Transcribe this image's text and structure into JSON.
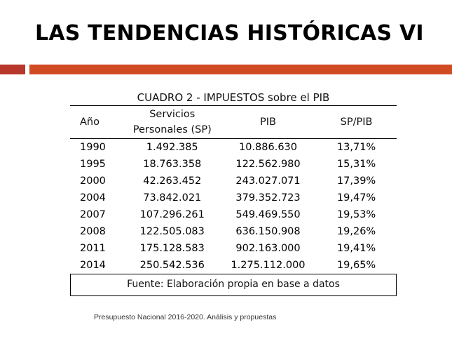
{
  "title": "LAS TENDENCIAS HISTÓRICAS VI",
  "table": {
    "caption": "CUADRO 2 - IMPUESTOS sobre el PIB",
    "headers": {
      "year": "Año",
      "sp_line1": "Servicios",
      "sp_line2": "Personales (SP)",
      "pib": "PIB",
      "ratio": "SP/PIB"
    },
    "rows": [
      {
        "year": "1990",
        "sp": "1.492.385",
        "pib": "10.886.630",
        "ratio": "13,71%"
      },
      {
        "year": "1995",
        "sp": "18.763.358",
        "pib": "122.562.980",
        "ratio": "15,31%"
      },
      {
        "year": "2000",
        "sp": "42.263.452",
        "pib": "243.027.071",
        "ratio": "17,39%"
      },
      {
        "year": "2004",
        "sp": "73.842.021",
        "pib": "379.352.723",
        "ratio": "19,47%"
      },
      {
        "year": "2007",
        "sp": "107.296.261",
        "pib": "549.469.550",
        "ratio": "19,53%"
      },
      {
        "year": "2008",
        "sp": "122.505.083",
        "pib": "636.150.908",
        "ratio": "19,26%"
      },
      {
        "year": "2011",
        "sp": "175.128.583",
        "pib": "902.163.000",
        "ratio": "19,41%"
      },
      {
        "year": "2014",
        "sp": "250.542.536",
        "pib": "1.275.112.000",
        "ratio": "19,65%"
      }
    ],
    "source": "Fuente: Elaboración propia en base a datos"
  },
  "footer": "Presupuesto Nacional  2016-2020. Análisis y propuestas",
  "colors": {
    "accent_bar": "#d04a22",
    "accent_bar_small": "#b8372c"
  }
}
